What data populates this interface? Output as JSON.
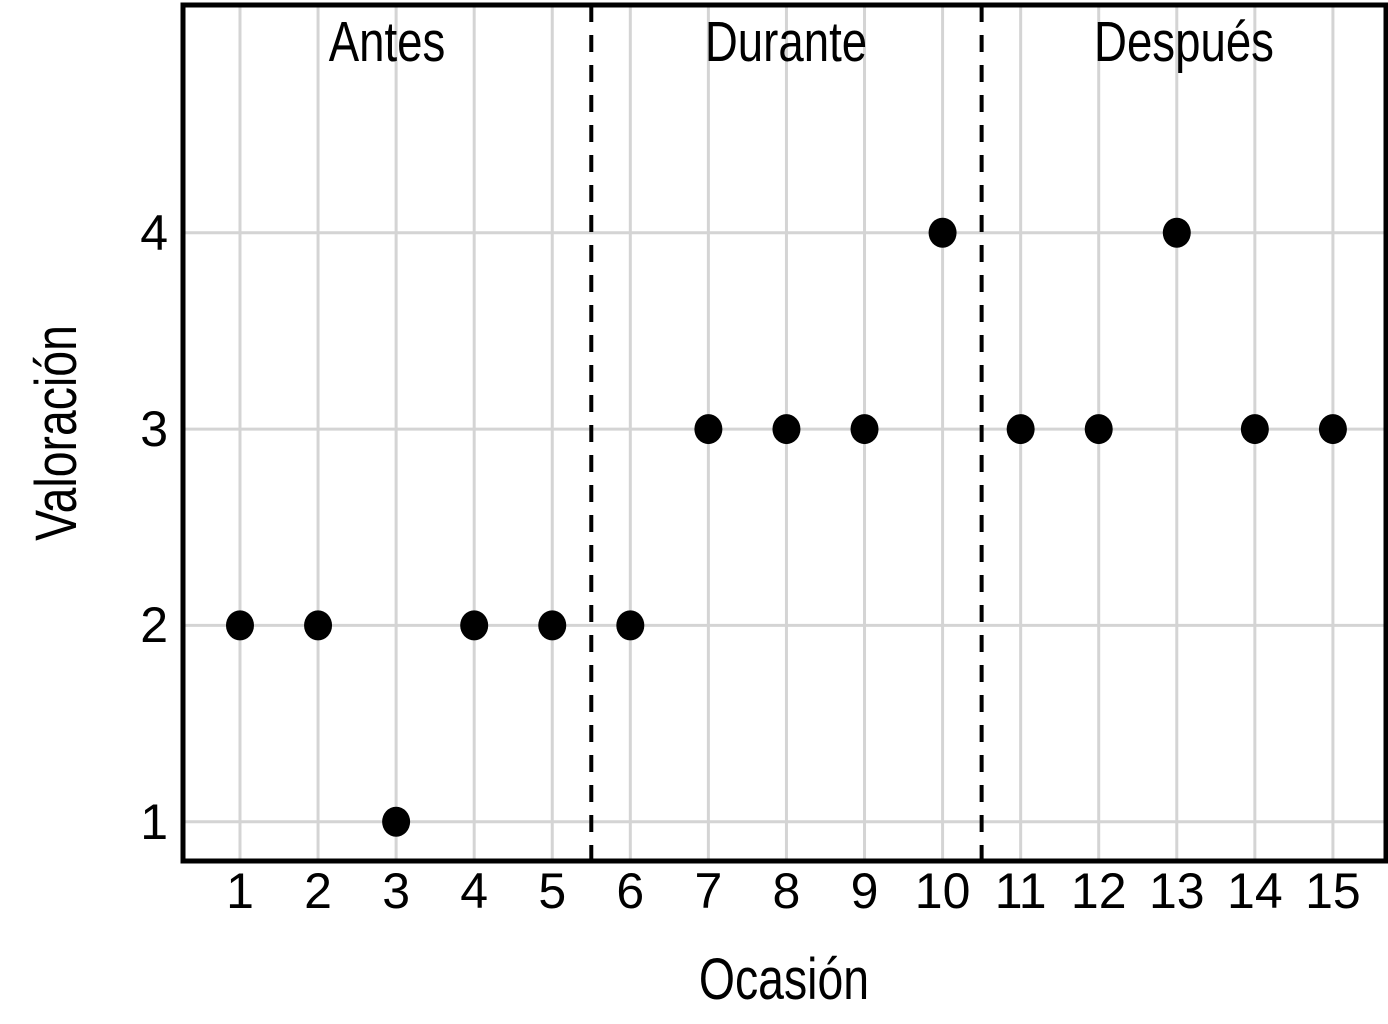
{
  "figure": {
    "background": "#ffffff",
    "text_color": "#000000"
  },
  "chart_data": {
    "type": "scatter",
    "title": "",
    "xlabel": "Ocasión",
    "ylabel": "Valoración",
    "x": [
      1,
      2,
      3,
      4,
      5,
      6,
      7,
      8,
      9,
      10,
      11,
      12,
      13,
      14,
      15
    ],
    "y": [
      2,
      2,
      1,
      2,
      2,
      2,
      3,
      3,
      3,
      4,
      3,
      3,
      4,
      3,
      3
    ],
    "x_ticks": [
      "1",
      "2",
      "3",
      "4",
      "5",
      "6",
      "7",
      "8",
      "9",
      "10",
      "11",
      "12",
      "13",
      "14",
      "15"
    ],
    "y_ticks": [
      "1",
      "2",
      "3",
      "4"
    ],
    "xlim": [
      0.27,
      15.68
    ],
    "ylim": [
      0.8,
      5.16
    ],
    "grid": true,
    "legend_position": "none",
    "point_color": "#000000",
    "grid_color": "#d4d4d4",
    "axis_color": "#000000",
    "phase_dividers": [
      5.5,
      10.5
    ],
    "phases": [
      {
        "label": "Antes",
        "from": 0.27,
        "to": 5.5
      },
      {
        "label": "Durante",
        "from": 5.5,
        "to": 10.5
      },
      {
        "label": "Después",
        "from": 10.5,
        "to": 15.68
      }
    ]
  }
}
